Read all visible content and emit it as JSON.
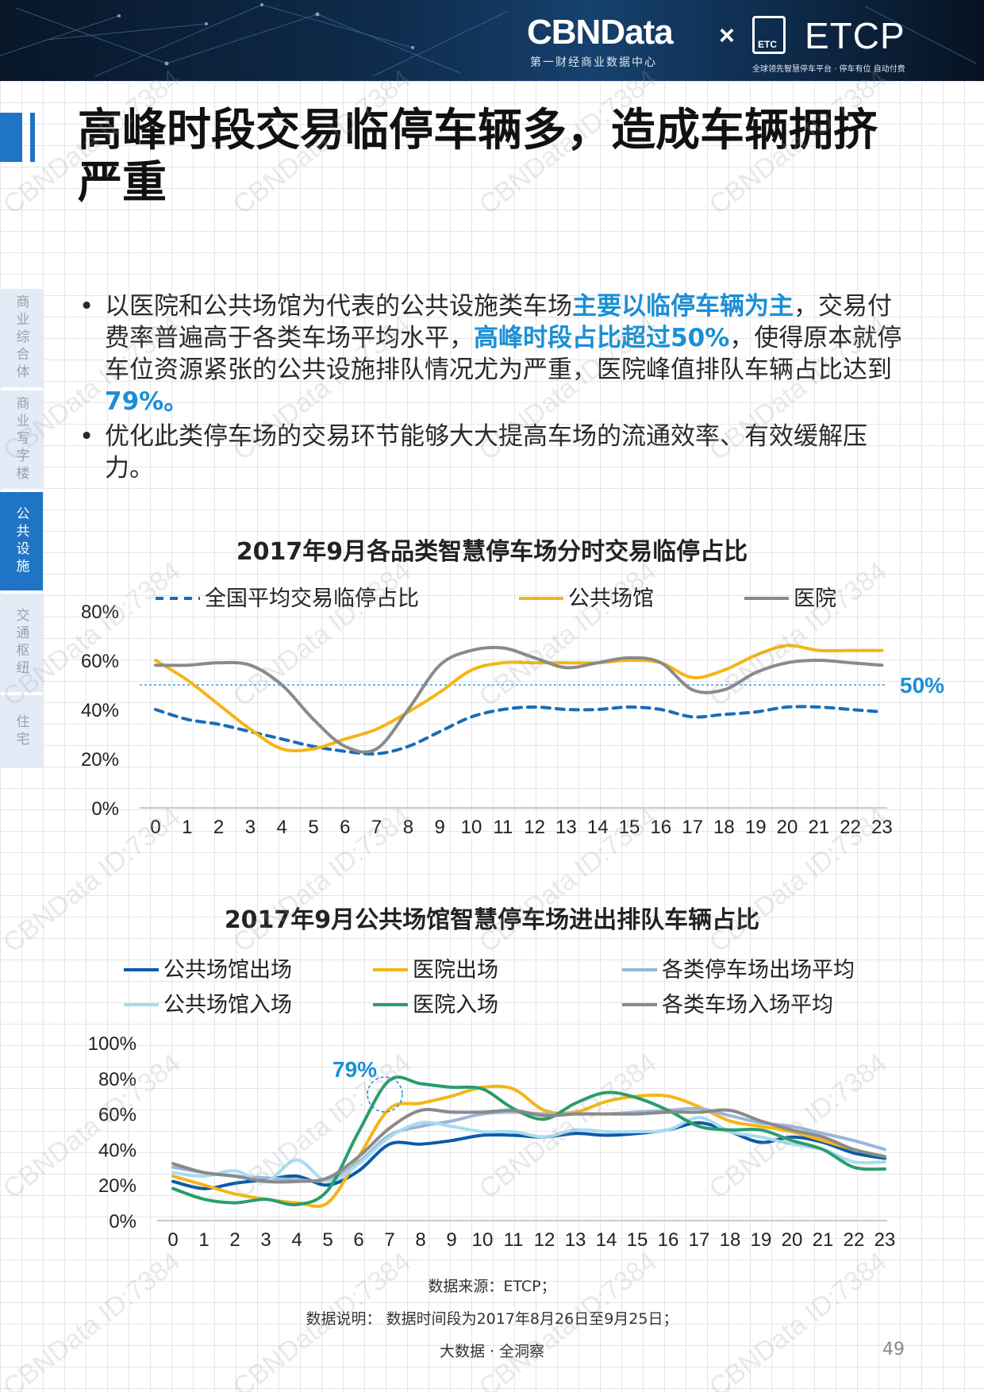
{
  "header": {
    "brand_left": "CBNData",
    "brand_left_sub": "第一财经商业数据中心",
    "separator": "×",
    "brand_right": "ETCP",
    "brand_right_badge": "ETC",
    "brand_right_sub": "全球领先智慧停车平台 · 停车有位 自动付费"
  },
  "page_title": "高峰时段交易临停车辆多，造成车辆拥挤严重",
  "side_nav": [
    {
      "label": "商业综合体",
      "active": false
    },
    {
      "label": "商业写字楼",
      "active": false
    },
    {
      "label": "公共设施",
      "active": true
    },
    {
      "label": "交通枢纽",
      "active": false
    },
    {
      "label": "住宅",
      "active": false
    }
  ],
  "bullets": {
    "b1_part1": "以医院和公共场馆为代表的公共设施类车场",
    "b1_hl1": "主要以临停车辆为主",
    "b1_part2": "，交易付费率普遍高于各类车场平均水平，",
    "b1_hl2": "高峰时段占比超过50%",
    "b1_part3": "，使得原本就停车位资源紧张的公共设施排队情况尤为严重，医院峰值排队车辆占比达到",
    "b1_hl3": "79%。",
    "b2": "优化此类停车场的交易环节能够大大提高车场的流通效率、有效缓解压力。",
    "bullet_symbol": "•"
  },
  "chart_data": [
    {
      "type": "line",
      "title": "2017年9月各品类智慧停车场分时交易临停占比",
      "x": [
        0,
        1,
        2,
        3,
        4,
        5,
        6,
        7,
        8,
        9,
        10,
        11,
        12,
        13,
        14,
        15,
        16,
        17,
        18,
        19,
        20,
        21,
        22,
        23
      ],
      "ylim": [
        0,
        80
      ],
      "yticks": [
        "0%",
        "20%",
        "40%",
        "60%",
        "80%"
      ],
      "legend_position": "top",
      "reference_line": {
        "value": 50,
        "label": "50%"
      },
      "series": [
        {
          "name": "全国平均交易临停占比",
          "color": "#1a6cb8",
          "dash": true,
          "values": [
            40,
            36,
            34,
            31,
            28,
            25,
            23,
            22,
            25,
            31,
            37,
            40,
            41,
            40,
            40,
            41,
            40,
            37,
            38,
            39,
            41,
            41,
            40,
            39
          ]
        },
        {
          "name": "公共场馆",
          "color": "#f5b517",
          "dash": false,
          "values": [
            60,
            52,
            42,
            32,
            24,
            24,
            28,
            32,
            39,
            47,
            56,
            59,
            59,
            59,
            59,
            60,
            59,
            53,
            56,
            62,
            66,
            64,
            64,
            64
          ]
        },
        {
          "name": "医院",
          "color": "#8a8a8a",
          "dash": false,
          "values": [
            58,
            58,
            59,
            58,
            50,
            36,
            25,
            24,
            40,
            58,
            64,
            65,
            61,
            57,
            59,
            61,
            59,
            48,
            48,
            55,
            59,
            60,
            59,
            58
          ]
        }
      ]
    },
    {
      "type": "line",
      "title": "2017年9月公共场馆智慧停车场进出排队车辆占比",
      "x": [
        0,
        1,
        2,
        3,
        4,
        5,
        6,
        7,
        8,
        9,
        10,
        11,
        12,
        13,
        14,
        15,
        16,
        17,
        18,
        19,
        20,
        21,
        22,
        23
      ],
      "ylim": [
        0,
        100
      ],
      "yticks": [
        "0%",
        "20%",
        "40%",
        "60%",
        "80%",
        "100%"
      ],
      "legend_position": "top",
      "annotation": {
        "label": "79%",
        "x": 7,
        "y": 79
      },
      "series": [
        {
          "name": "公共场馆出场",
          "color": "#0b5aa8",
          "values": [
            22,
            18,
            21,
            23,
            25,
            20,
            28,
            43,
            43,
            45,
            48,
            48,
            47,
            49,
            48,
            49,
            51,
            55,
            50,
            44,
            47,
            44,
            38,
            35
          ]
        },
        {
          "name": "医院出场",
          "color": "#f5b517",
          "values": [
            25,
            20,
            15,
            12,
            10,
            10,
            36,
            63,
            66,
            70,
            75,
            74,
            62,
            61,
            67,
            70,
            70,
            64,
            56,
            53,
            50,
            45,
            40,
            36
          ]
        },
        {
          "name": "各类停车场出场平均",
          "color": "#9ab6d6",
          "values": [
            30,
            27,
            25,
            24,
            23,
            23,
            33,
            48,
            53,
            56,
            60,
            61,
            60,
            60,
            60,
            61,
            62,
            63,
            59,
            55,
            53,
            49,
            45,
            40
          ]
        },
        {
          "name": "公共场馆入场",
          "color": "#a8dbf0",
          "values": [
            27,
            25,
            28,
            22,
            34,
            22,
            32,
            47,
            55,
            53,
            50,
            50,
            47,
            51,
            50,
            50,
            51,
            58,
            50,
            47,
            43,
            40,
            33,
            33
          ]
        },
        {
          "name": "医院入场",
          "color": "#2a9d6a",
          "values": [
            18,
            12,
            10,
            12,
            9,
            17,
            50,
            79,
            77,
            75,
            74,
            63,
            57,
            66,
            72,
            69,
            62,
            53,
            51,
            51,
            45,
            40,
            30,
            29
          ]
        },
        {
          "name": "各类车场入场平均",
          "color": "#8a8a8a",
          "values": [
            32,
            27,
            25,
            22,
            22,
            24,
            36,
            52,
            62,
            61,
            61,
            62,
            59,
            60,
            60,
            60,
            61,
            61,
            62,
            56,
            51,
            47,
            40,
            36
          ]
        }
      ]
    }
  ],
  "footer": {
    "source": "数据来源：ETCP；",
    "note": "数据说明：  数据时间段为2017年8月26日至9月25日；",
    "tagline": "大数据 · 全洞察"
  },
  "page_number": "49",
  "watermark": "CBNData ID:7384",
  "colors": {
    "accent": "#1f74c6",
    "highlight": "#1a8fd6"
  }
}
